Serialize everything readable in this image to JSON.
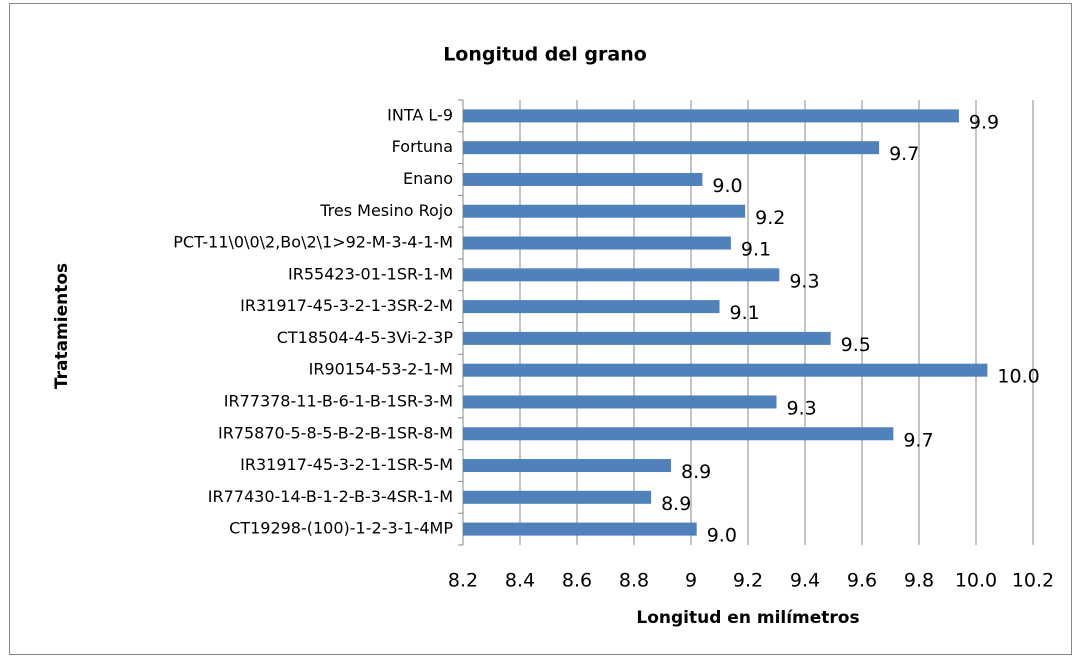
{
  "chart_data": {
    "type": "bar",
    "orientation": "horizontal",
    "title": "Longitud del grano",
    "x_axis_label": "Longitud en milímetros",
    "y_axis_label": "Tratamientos",
    "categories": [
      "INTA L-9",
      "Fortuna",
      "Enano",
      "Tres Mesino Rojo",
      "PCT-11\\0\\0\\2,Bo\\2\\1>92-M-3-4-1-M",
      "IR55423-01-1SR-1-M",
      "IR31917-45-3-2-1-3SR-2-M",
      "CT18504-4-5-3Vi-2-3P",
      "IR90154-53-2-1-M",
      "IR77378-11-B-6-1-B-1SR-3-M",
      "IR75870-5-8-5-B-2-B-1SR-8-M",
      "IR31917-45-3-2-1-1SR-5-M",
      "IR77430-14-B-1-2-B-3-4SR-1-M",
      "CT19298-(100)-1-2-3-1-4MP"
    ],
    "values": [
      9.94,
      9.66,
      9.04,
      9.19,
      9.14,
      9.31,
      9.1,
      9.49,
      10.04,
      9.3,
      9.71,
      8.93,
      8.86,
      9.02
    ],
    "value_labels": [
      "9.9",
      "9.7",
      "9.0",
      "9.2",
      "9.1",
      "9.3",
      "9.1",
      "9.5",
      "10.0",
      "9.3",
      "9.7",
      "8.9",
      "8.9",
      "9.0"
    ],
    "color": "#4f81bd",
    "xlim": [
      8.2,
      10.2
    ],
    "xticks": [
      8.2,
      8.4,
      8.6,
      8.8,
      9.0,
      9.2,
      9.4,
      9.6,
      9.8,
      {
        "value": 10,
        "label": "10.0"
      },
      10.2
    ],
    "grid": true
  }
}
